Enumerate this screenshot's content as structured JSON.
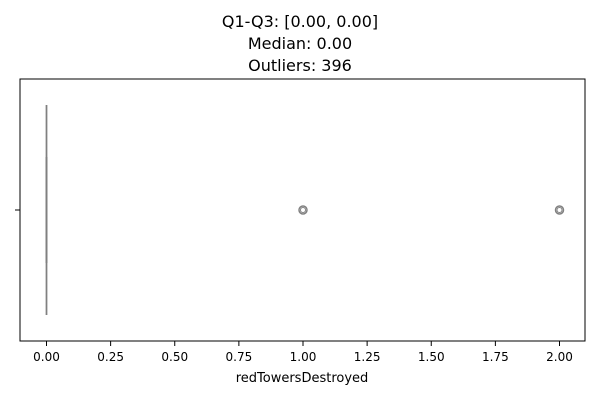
{
  "chart_data": {
    "type": "box",
    "title_lines": [
      "Q1-Q3: [0.00, 0.00]",
      "Median: 0.00",
      "Outliers: 396"
    ],
    "xlabel": "redTowersDestroyed",
    "ylabel": "",
    "xlim": [
      -0.1,
      2.1
    ],
    "x_ticks": [
      0.0,
      0.25,
      0.5,
      0.75,
      1.0,
      1.25,
      1.5,
      1.75,
      2.0
    ],
    "x_tick_labels": [
      "0.00",
      "0.25",
      "0.50",
      "0.75",
      "1.00",
      "1.25",
      "1.50",
      "1.75",
      "2.00"
    ],
    "box": {
      "q1": 0.0,
      "median": 0.0,
      "q3": 0.0,
      "whisker_low": 0.0,
      "whisker_high": 0.0
    },
    "outlier_values": [
      1.0,
      2.0
    ],
    "colors": {
      "box_line": "#808080",
      "outlier_edge": "#808080",
      "axes": "#000000"
    },
    "grid": false
  }
}
